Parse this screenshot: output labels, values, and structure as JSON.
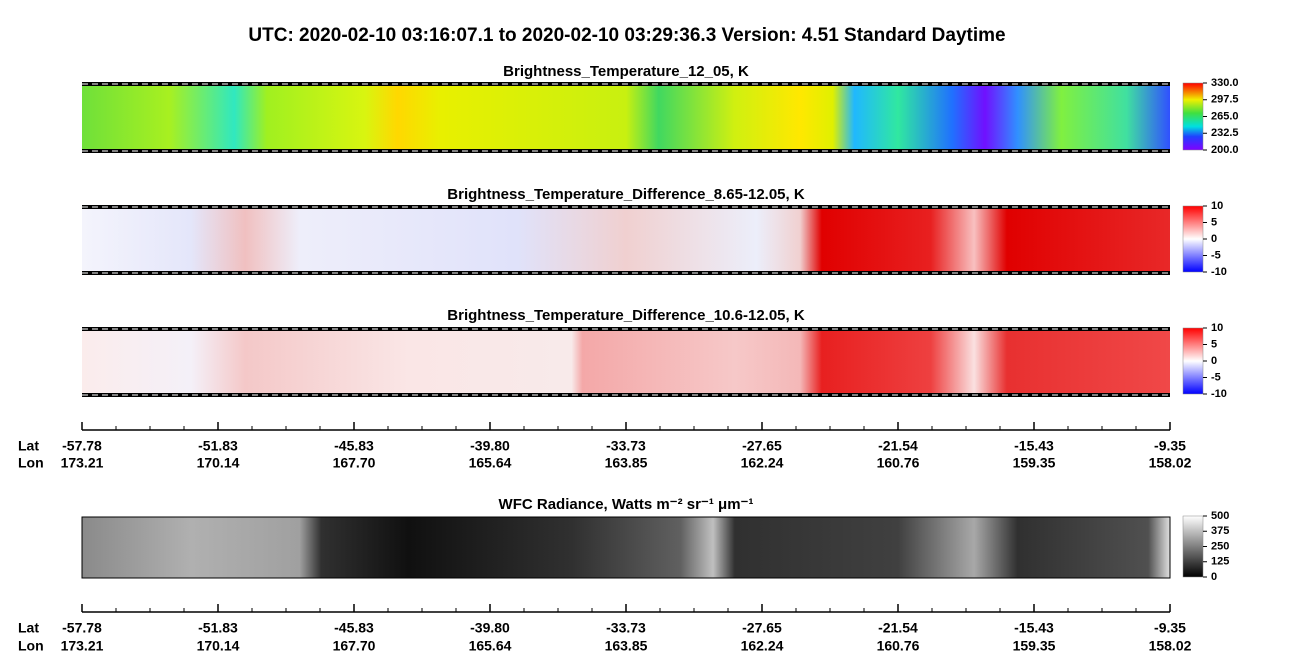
{
  "title": "UTC:  2020-02-10   03:16:07.1  to  2020-02-10   03:29:36.3    Version: 4.51  Standard Daytime",
  "panels": [
    {
      "title": "Brightness_Temperature_12_05, K",
      "clim": [
        200,
        330
      ],
      "cticks": [
        {
          "value": 330,
          "label": "330.0"
        },
        297.5,
        {
          "value": 265,
          "label": "265.0"
        },
        232.5,
        {
          "value": 200,
          "label": "200.0"
        }
      ]
    },
    {
      "title": "Brightness_Temperature_Difference_8.65-12.05, K",
      "clim": [
        -10,
        10
      ],
      "cticks": [
        10,
        5,
        0,
        -5,
        -10
      ]
    },
    {
      "title": "Brightness_Temperature_Difference_10.6-12.05, K",
      "clim": [
        -10,
        10
      ],
      "cticks": [
        10,
        5,
        0,
        -5,
        -10
      ]
    },
    {
      "title": "WFC Radiance, Watts m⁻² sr⁻¹ μm⁻¹",
      "clim": [
        0,
        500
      ],
      "cticks": [
        500,
        375,
        250,
        125,
        0
      ]
    }
  ],
  "axis": {
    "lat_label": "Lat",
    "lon_label": "Lon",
    "lat": [
      -57.78,
      -51.83,
      -45.83,
      {
        "value": -39.8,
        "label": "-39.80"
      },
      -33.73,
      -27.65,
      -21.54,
      -15.43,
      -9.35
    ],
    "lon": [
      173.21,
      170.14,
      {
        "value": 167.7,
        "label": "167.70"
      },
      165.64,
      163.85,
      162.24,
      160.76,
      159.35,
      158.02
    ]
  }
}
